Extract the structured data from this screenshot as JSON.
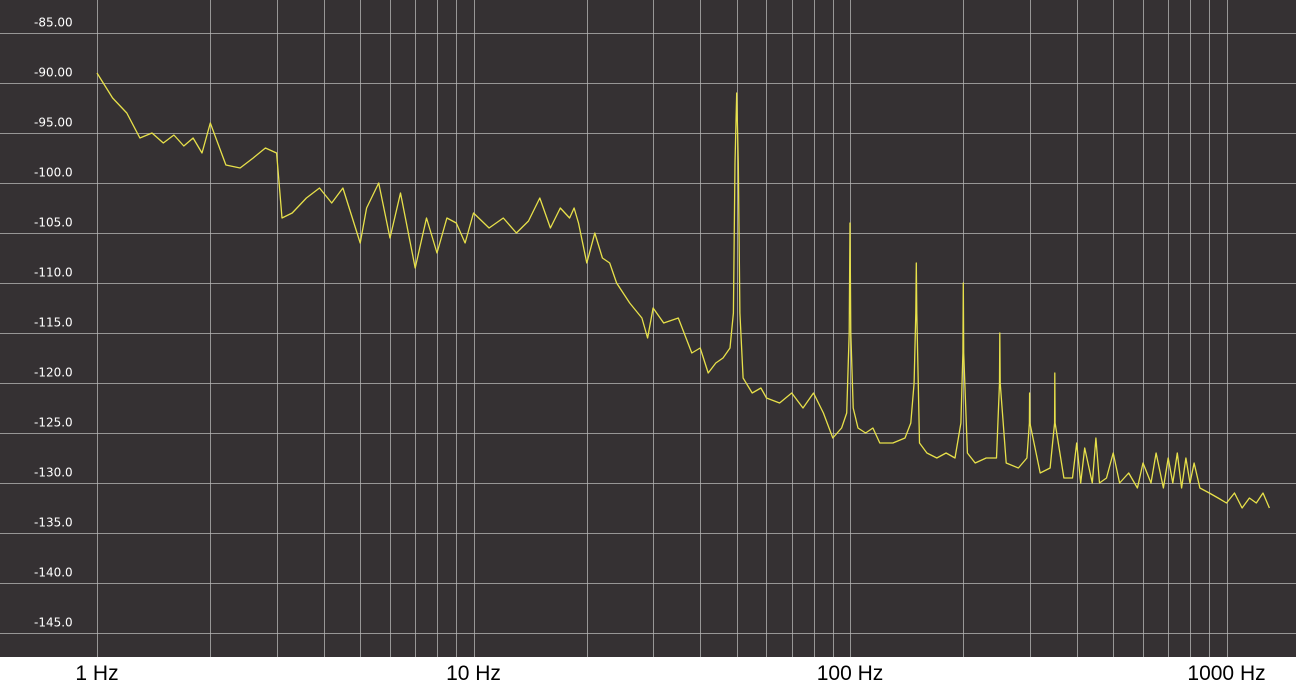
{
  "chart_data": {
    "type": "line",
    "title": "",
    "xlabel": "",
    "ylabel": "",
    "x_scale": "log",
    "xlim": [
      1,
      1300
    ],
    "ylim": [
      -147,
      -84
    ],
    "grid": true,
    "legend": "none",
    "colors": {
      "background": "#353133",
      "grid": "#b8b8b8",
      "trace": "#e7e04a"
    },
    "x_ticks": [
      {
        "value": 1,
        "label": "1 Hz"
      },
      {
        "value": 10,
        "label": "10 Hz"
      },
      {
        "value": 100,
        "label": "100 Hz"
      },
      {
        "value": 1000,
        "label": "1000 Hz"
      }
    ],
    "y_ticks": [
      {
        "value": -85,
        "label": "-85.00"
      },
      {
        "value": -90,
        "label": "-90.00"
      },
      {
        "value": -95,
        "label": "-95.00"
      },
      {
        "value": -100,
        "label": "-100.0"
      },
      {
        "value": -105,
        "label": "-105.0"
      },
      {
        "value": -110,
        "label": "-110.0"
      },
      {
        "value": -115,
        "label": "-115.0"
      },
      {
        "value": -120,
        "label": "-120.0"
      },
      {
        "value": -125,
        "label": "-125.0"
      },
      {
        "value": -130,
        "label": "-130.0"
      },
      {
        "value": -135,
        "label": "-135.0"
      },
      {
        "value": -140,
        "label": "-140.0"
      },
      {
        "value": -145,
        "label": "-145.0"
      }
    ],
    "series": [
      {
        "x": [
          1.0,
          1.1,
          1.2,
          1.3,
          1.4,
          1.5,
          1.6,
          1.7,
          1.8,
          1.9,
          2.0,
          2.2,
          2.4,
          2.6,
          2.8,
          3.0,
          3.1,
          3.3,
          3.6,
          3.9,
          4.2,
          4.5,
          5.0,
          5.2,
          5.6,
          6.0,
          6.4,
          7.0,
          7.5,
          8.0,
          8.5,
          9.0,
          9.5,
          10.0,
          11,
          12,
          13,
          14,
          15,
          16,
          17,
          18,
          18.5,
          19,
          20,
          21,
          22,
          23,
          24,
          26,
          28,
          29,
          30,
          32,
          35,
          38,
          40,
          42,
          44,
          46,
          48,
          49,
          49.5,
          50,
          50.5,
          51,
          52,
          55,
          58,
          60,
          65,
          70,
          75,
          80,
          85,
          90,
          95,
          98,
          99.5,
          100,
          100.5,
          102,
          105,
          110,
          115,
          120,
          130,
          140,
          145,
          148,
          149.5,
          150,
          150.5,
          153,
          160,
          170,
          180,
          190,
          197,
          199.5,
          200,
          200.5,
          205,
          215,
          230,
          245,
          249.5,
          250,
          250.5,
          260,
          280,
          295,
          299.5,
          300,
          300.5,
          320,
          340,
          349.5,
          350,
          350.5,
          370,
          390,
          400,
          410,
          420,
          440,
          450,
          460,
          480,
          500,
          520,
          550,
          580,
          600,
          630,
          650,
          680,
          700,
          720,
          740,
          760,
          780,
          800,
          820,
          850,
          900,
          950,
          1000,
          1050,
          1100,
          1150,
          1200,
          1250,
          1300
        ],
        "values": [
          -89.0,
          -91.5,
          -93.0,
          -95.5,
          -95.0,
          -96.0,
          -95.2,
          -96.3,
          -95.5,
          -97.0,
          -94.0,
          -98.2,
          -98.5,
          -97.5,
          -96.5,
          -97.0,
          -103.5,
          -103.0,
          -101.5,
          -100.5,
          -102.0,
          -100.5,
          -106.0,
          -102.5,
          -100.0,
          -105.5,
          -101.0,
          -108.5,
          -103.5,
          -107.0,
          -103.5,
          -104.0,
          -106.0,
          -103.0,
          -104.5,
          -103.5,
          -105.0,
          -103.8,
          -101.5,
          -104.5,
          -102.5,
          -103.5,
          -102.5,
          -104.0,
          -108.0,
          -105.0,
          -107.5,
          -108.0,
          -110.0,
          -112.0,
          -113.5,
          -115.5,
          -112.5,
          -114.0,
          -113.5,
          -117.0,
          -116.5,
          -119.0,
          -118.0,
          -117.5,
          -116.5,
          -113.0,
          -98.0,
          -91.0,
          -98.0,
          -113.0,
          -119.5,
          -121.0,
          -120.5,
          -121.5,
          -122.0,
          -121.0,
          -122.5,
          -121.0,
          -123.0,
          -125.5,
          -124.5,
          -123.0,
          -115.0,
          -104.0,
          -115.0,
          -122.5,
          -124.5,
          -125.0,
          -124.5,
          -126.0,
          -126.0,
          -125.5,
          -124.0,
          -120.0,
          -113.0,
          -108.0,
          -113.0,
          -126.0,
          -127.0,
          -127.5,
          -127.0,
          -127.5,
          -124.0,
          -117.0,
          -110.0,
          -117.0,
          -127.0,
          -128.0,
          -127.5,
          -127.5,
          -120.0,
          -115.0,
          -120.0,
          -128.0,
          -128.5,
          -127.5,
          -124.0,
          -121.0,
          -124.0,
          -129.0,
          -128.5,
          -124.0,
          -119.0,
          -124.0,
          -129.5,
          -129.5,
          -126.0,
          -130.0,
          -126.5,
          -130.0,
          -125.5,
          -130.0,
          -129.5,
          -127.0,
          -130.0,
          -129.0,
          -130.5,
          -128.0,
          -130.0,
          -127.0,
          -130.5,
          -127.5,
          -130.0,
          -127.0,
          -130.5,
          -127.5,
          -130.0,
          -128.0,
          -130.5,
          -131.0,
          -131.5,
          -132.0,
          -131.0,
          -132.5,
          -131.5,
          -132.0,
          -131.0,
          -132.5
        ]
      }
    ]
  }
}
